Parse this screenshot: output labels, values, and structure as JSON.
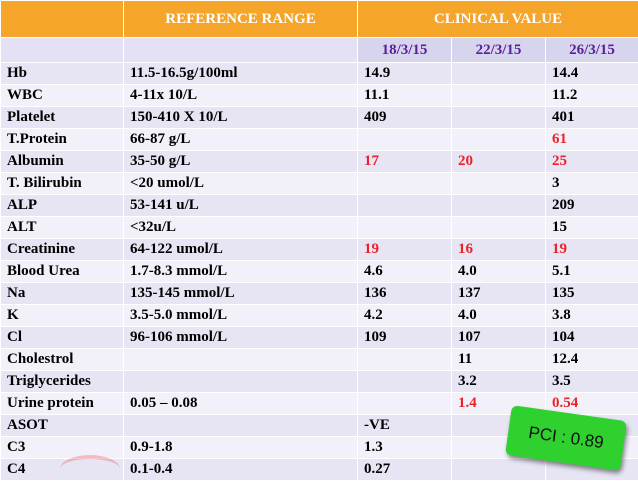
{
  "header": {
    "reference_range": "REFERENCE  RANGE",
    "clinical_value": "CLINICAL VALUE"
  },
  "dates": [
    "18/3/15",
    "22/3/15",
    "26/3/15"
  ],
  "rows": [
    {
      "test": "Hb",
      "range": "11.5-16.5g/100ml",
      "v1": "14.9",
      "v2": "",
      "v3": "14.4",
      "red": [
        false,
        false,
        false
      ]
    },
    {
      "test": "WBC",
      "range": "4-11x 10/L",
      "v1": "11.1",
      "v2": "",
      "v3": "11.2",
      "red": [
        false,
        false,
        false
      ]
    },
    {
      "test": "Platelet",
      "range": "150-410 X 10/L",
      "v1": "409",
      "v2": "",
      "v3": "401",
      "red": [
        false,
        false,
        false
      ]
    },
    {
      "test": "T.Protein",
      "range": "66-87 g/L",
      "v1": "",
      "v2": "",
      "v3": "61",
      "red": [
        false,
        false,
        true
      ]
    },
    {
      "test": "Albumin",
      "range": "35-50 g/L",
      "v1": "17",
      "v2": "20",
      "v3": "25",
      "red": [
        true,
        true,
        true
      ]
    },
    {
      "test": "T. Bilirubin",
      "range": "<20 umol/L",
      "v1": "",
      "v2": "",
      "v3": "3",
      "red": [
        false,
        false,
        false
      ]
    },
    {
      "test": "ALP",
      "range": "53-141 u/L",
      "v1": "",
      "v2": "",
      "v3": "209",
      "red": [
        false,
        false,
        false
      ]
    },
    {
      "test": "ALT",
      "range": "<32u/L",
      "v1": "",
      "v2": "",
      "v3": "15",
      "red": [
        false,
        false,
        false
      ]
    },
    {
      "test": "Creatinine",
      "range": "64-122 umol/L",
      "v1": "19",
      "v2": "16",
      "v3": "19",
      "red": [
        true,
        true,
        true
      ]
    },
    {
      "test": "Blood Urea",
      "range": "1.7-8.3 mmol/L",
      "v1": "4.6",
      "v2": "4.0",
      "v3": "5.1",
      "red": [
        false,
        false,
        false
      ]
    },
    {
      "test": "Na",
      "range": "135-145  mmol/L",
      "v1": "136",
      "v2": "137",
      "v3": "135",
      "red": [
        false,
        false,
        false
      ]
    },
    {
      "test": "K",
      "range": "3.5-5.0 mmol/L",
      "v1": "4.2",
      "v2": "4.0",
      "v3": "3.8",
      "red": [
        false,
        false,
        false
      ]
    },
    {
      "test": "Cl",
      "range": "96-106 mmol/L",
      "v1": "109",
      "v2": "107",
      "v3": "104",
      "red": [
        false,
        false,
        false
      ]
    },
    {
      "test": "Cholestrol",
      "range": "",
      "v1": "",
      "v2": "11",
      "v3": "12.4",
      "red": [
        false,
        false,
        false
      ]
    },
    {
      "test": "Triglycerides",
      "range": "",
      "v1": "",
      "v2": "3.2",
      "v3": "3.5",
      "red": [
        false,
        false,
        false
      ]
    },
    {
      "test": "Urine protein",
      "range": "0.05 – 0.08",
      "v1": "",
      "v2": "1.4",
      "v3": "0.54",
      "red": [
        false,
        true,
        true
      ]
    },
    {
      "test": "ASOT",
      "range": "",
      "v1": "-VE",
      "v2": "",
      "v3": "",
      "red": [
        false,
        false,
        false
      ]
    },
    {
      "test": "C3",
      "range": "0.9-1.8",
      "v1": "1.3",
      "v2": "",
      "v3": "",
      "red": [
        false,
        false,
        false
      ]
    },
    {
      "test": "C4",
      "range": "0.1-0.4",
      "v1": "0.27",
      "v2": "",
      "v3": "",
      "red": [
        false,
        false,
        false
      ]
    }
  ],
  "callout": {
    "text": "PCI : 0.89"
  },
  "colors": {
    "header_bg": "#f4a52a",
    "date_text": "#5a1f9a",
    "abnormal": "#e8232b",
    "callout_bg": "#2ed12e"
  }
}
